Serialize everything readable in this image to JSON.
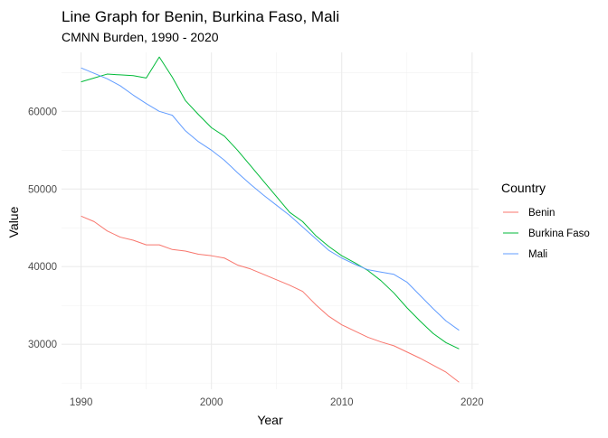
{
  "chart_data": {
    "type": "line",
    "title": "Line Graph for Benin, Burkina Faso, Mali",
    "subtitle": "CMNN Burden, 1990 - 2020",
    "xlabel": "Year",
    "ylabel": "Value",
    "xlim": [
      1988.5,
      2020.5
    ],
    "ylim": [
      24200,
      67600
    ],
    "x_ticks": [
      1990,
      2000,
      2010,
      2020
    ],
    "y_ticks": [
      30000,
      40000,
      50000,
      60000
    ],
    "grid": true,
    "legend": {
      "title": "Country",
      "placement": "right"
    },
    "x": [
      1990,
      1991,
      1992,
      1993,
      1994,
      1995,
      1996,
      1997,
      1998,
      1999,
      2000,
      2001,
      2002,
      2003,
      2004,
      2005,
      2006,
      2007,
      2008,
      2009,
      2010,
      2011,
      2012,
      2013,
      2014,
      2015,
      2016,
      2017,
      2018,
      2019
    ],
    "series": [
      {
        "name": "Benin",
        "color": "#F8766D",
        "values": [
          46500,
          45800,
          44600,
          43800,
          43400,
          42800,
          42800,
          42200,
          42000,
          41600,
          41400,
          41100,
          40200,
          39700,
          39000,
          38300,
          37600,
          36800,
          35100,
          33600,
          32500,
          31700,
          30900,
          30300,
          29800,
          29000,
          28200,
          27300,
          26400,
          25100
        ]
      },
      {
        "name": "Burkina Faso",
        "color": "#00BA38",
        "values": [
          63800,
          64300,
          64800,
          64700,
          64600,
          64300,
          67000,
          64400,
          61400,
          59600,
          57900,
          56800,
          55000,
          53000,
          51000,
          49000,
          47000,
          45800,
          44000,
          42600,
          41400,
          40500,
          39500,
          38200,
          36600,
          34700,
          33000,
          31400,
          30200,
          29400
        ]
      },
      {
        "name": "Mali",
        "color": "#619CFF",
        "values": [
          65600,
          64900,
          64200,
          63300,
          62100,
          61000,
          60000,
          59500,
          57500,
          56100,
          55000,
          53700,
          52100,
          50600,
          49200,
          47900,
          46600,
          45100,
          43600,
          42100,
          41100,
          40300,
          39600,
          39300,
          39000,
          38000,
          36300,
          34600,
          33000,
          31800
        ]
      }
    ]
  }
}
